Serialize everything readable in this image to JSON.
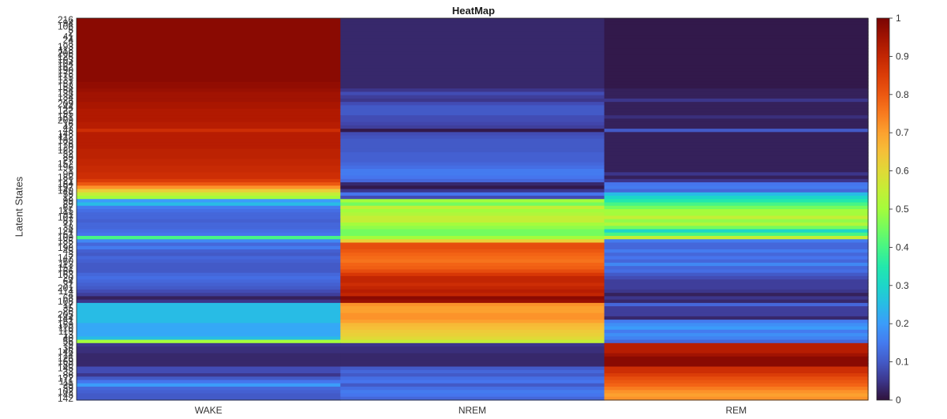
{
  "chart_data": {
    "type": "heatmap",
    "title": "HeatMap",
    "xlabel": "",
    "ylabel": "Latent States",
    "categories": [
      "WAKE",
      "NREM",
      "REM"
    ],
    "colormap": "turbo",
    "colorbar": {
      "range": [
        0,
        1
      ],
      "ticks": [
        "0",
        "0.1",
        "0.2",
        "0.3",
        "0.4",
        "0.5",
        "0.6",
        "0.7",
        "0.8",
        "0.9",
        "1"
      ]
    },
    "rows": [
      {
        "y": "216",
        "values": [
          0.98,
          0.03,
          0.01
        ]
      },
      {
        "y": "94",
        "values": [
          0.98,
          0.03,
          0.01
        ]
      },
      {
        "y": "106",
        "values": [
          0.98,
          0.03,
          0.01
        ]
      },
      {
        "y": "5",
        "values": [
          0.98,
          0.03,
          0.01
        ]
      },
      {
        "y": "2",
        "values": [
          0.98,
          0.03,
          0.01
        ]
      },
      {
        "y": "41",
        "values": [
          0.98,
          0.03,
          0.01
        ]
      },
      {
        "y": "24",
        "values": [
          0.98,
          0.03,
          0.01
        ]
      },
      {
        "y": "8",
        "values": [
          0.98,
          0.03,
          0.01
        ]
      },
      {
        "y": "193",
        "values": [
          0.98,
          0.03,
          0.01
        ]
      },
      {
        "y": "118",
        "values": [
          0.98,
          0.03,
          0.01
        ]
      },
      {
        "y": "206",
        "values": [
          0.98,
          0.03,
          0.01
        ]
      },
      {
        "y": "125",
        "values": [
          0.98,
          0.03,
          0.01
        ]
      },
      {
        "y": "103",
        "values": [
          0.98,
          0.03,
          0.01
        ]
      },
      {
        "y": "104",
        "values": [
          0.98,
          0.03,
          0.01
        ]
      },
      {
        "y": "162",
        "values": [
          0.98,
          0.03,
          0.01
        ]
      },
      {
        "y": "190",
        "values": [
          0.98,
          0.03,
          0.01
        ]
      },
      {
        "y": "178",
        "values": [
          0.98,
          0.03,
          0.01
        ]
      },
      {
        "y": "175",
        "values": [
          0.98,
          0.03,
          0.01
        ]
      },
      {
        "y": "131",
        "values": [
          0.98,
          0.03,
          0.01
        ]
      },
      {
        "y": "57",
        "values": [
          0.97,
          0.03,
          0.01
        ]
      },
      {
        "y": "158",
        "values": [
          0.97,
          0.03,
          0.01
        ]
      },
      {
        "y": "54",
        "values": [
          0.96,
          0.05,
          0.02
        ]
      },
      {
        "y": "138",
        "values": [
          0.95,
          0.08,
          0.02
        ]
      },
      {
        "y": "134",
        "values": [
          0.95,
          0.06,
          0.02
        ]
      },
      {
        "y": "28",
        "values": [
          0.95,
          0.05,
          0.05
        ]
      },
      {
        "y": "209",
        "values": [
          0.94,
          0.08,
          0.02
        ]
      },
      {
        "y": "44",
        "values": [
          0.94,
          0.1,
          0.02
        ]
      },
      {
        "y": "122",
        "values": [
          0.93,
          0.1,
          0.02
        ]
      },
      {
        "y": "95",
        "values": [
          0.93,
          0.1,
          0.02
        ]
      },
      {
        "y": "161",
        "values": [
          0.93,
          0.08,
          0.04
        ]
      },
      {
        "y": "209",
        "values": [
          0.93,
          0.08,
          0.02
        ]
      },
      {
        "y": "16",
        "values": [
          0.92,
          0.07,
          0.02
        ]
      },
      {
        "y": "47",
        "values": [
          0.92,
          0.06,
          0.02
        ]
      },
      {
        "y": "48",
        "values": [
          0.88,
          0.01,
          0.1
        ]
      },
      {
        "y": "148",
        "values": [
          0.92,
          0.08,
          0.02
        ]
      },
      {
        "y": "112",
        "values": [
          0.92,
          0.09,
          0.02
        ]
      },
      {
        "y": "183",
        "values": [
          0.92,
          0.1,
          0.02
        ]
      },
      {
        "y": "76",
        "values": [
          0.92,
          0.1,
          0.02
        ]
      },
      {
        "y": "120",
        "values": [
          0.92,
          0.1,
          0.02
        ]
      },
      {
        "y": "128",
        "values": [
          0.91,
          0.1,
          0.02
        ]
      },
      {
        "y": "32",
        "values": [
          0.91,
          0.11,
          0.02
        ]
      },
      {
        "y": "83",
        "values": [
          0.91,
          0.11,
          0.02
        ]
      },
      {
        "y": "27",
        "values": [
          0.9,
          0.11,
          0.02
        ]
      },
      {
        "y": "152",
        "values": [
          0.9,
          0.12,
          0.02
        ]
      },
      {
        "y": "196",
        "values": [
          0.89,
          0.13,
          0.02
        ]
      },
      {
        "y": "1",
        "values": [
          0.89,
          0.15,
          0.02
        ]
      },
      {
        "y": "90",
        "values": [
          0.88,
          0.15,
          0.05
        ]
      },
      {
        "y": "188",
        "values": [
          0.88,
          0.14,
          0.02
        ]
      },
      {
        "y": "21",
        "values": [
          0.85,
          0.12,
          0.05
        ]
      },
      {
        "y": "184",
        "values": [
          0.8,
          0.03,
          0.14
        ]
      },
      {
        "y": "197",
        "values": [
          0.72,
          0.01,
          0.15
        ]
      },
      {
        "y": "149",
        "values": [
          0.62,
          0.05,
          0.12
        ]
      },
      {
        "y": "59",
        "values": [
          0.55,
          0.14,
          0.25
        ]
      },
      {
        "y": "12",
        "values": [
          0.5,
          0.08,
          0.3
        ]
      },
      {
        "y": "99",
        "values": [
          0.2,
          0.5,
          0.35
        ]
      },
      {
        "y": "89",
        "values": [
          0.25,
          0.45,
          0.4
        ]
      },
      {
        "y": "67",
        "values": [
          0.15,
          0.55,
          0.45
        ]
      },
      {
        "y": "115",
        "values": [
          0.13,
          0.5,
          0.5
        ]
      },
      {
        "y": "91",
        "values": [
          0.12,
          0.52,
          0.5
        ]
      },
      {
        "y": "107",
        "values": [
          0.12,
          0.55,
          0.55
        ]
      },
      {
        "y": "87",
        "values": [
          0.11,
          0.55,
          0.48
        ]
      },
      {
        "y": "77",
        "values": [
          0.12,
          0.5,
          0.52
        ]
      },
      {
        "y": "38",
        "values": [
          0.12,
          0.48,
          0.45
        ]
      },
      {
        "y": "124",
        "values": [
          0.13,
          0.45,
          0.3
        ]
      },
      {
        "y": "61",
        "values": [
          0.14,
          0.45,
          0.4
        ]
      },
      {
        "y": "109",
        "values": [
          0.4,
          0.5,
          0.55
        ]
      },
      {
        "y": "185",
        "values": [
          0.17,
          0.62,
          0.15
        ]
      },
      {
        "y": "22",
        "values": [
          0.12,
          0.82,
          0.12
        ]
      },
      {
        "y": "198",
        "values": [
          0.15,
          0.82,
          0.12
        ]
      },
      {
        "y": "45",
        "values": [
          0.11,
          0.8,
          0.15
        ]
      },
      {
        "y": "3",
        "values": [
          0.1,
          0.78,
          0.12
        ]
      },
      {
        "y": "147",
        "values": [
          0.12,
          0.77,
          0.14
        ]
      },
      {
        "y": "60",
        "values": [
          0.11,
          0.76,
          0.12
        ]
      },
      {
        "y": "113",
        "values": [
          0.1,
          0.78,
          0.17
        ]
      },
      {
        "y": "151",
        "values": [
          0.1,
          0.79,
          0.12
        ]
      },
      {
        "y": "66",
        "values": [
          0.1,
          0.82,
          0.13
        ]
      },
      {
        "y": "163",
        "values": [
          0.12,
          0.86,
          0.1
        ]
      },
      {
        "y": "20",
        "values": [
          0.13,
          0.9,
          0.08
        ]
      },
      {
        "y": "64",
        "values": [
          0.12,
          0.9,
          0.06
        ]
      },
      {
        "y": "31",
        "values": [
          0.11,
          0.88,
          0.06
        ]
      },
      {
        "y": "201",
        "values": [
          0.1,
          0.9,
          0.06
        ]
      },
      {
        "y": "114",
        "values": [
          0.08,
          0.92,
          0.05
        ]
      },
      {
        "y": "4",
        "values": [
          0.06,
          0.9,
          0.02
        ]
      },
      {
        "y": "68",
        "values": [
          0.02,
          0.98,
          0.05
        ]
      },
      {
        "y": "108",
        "values": [
          0.05,
          0.96,
          0.03
        ]
      },
      {
        "y": "17",
        "values": [
          0.25,
          0.72,
          0.12
        ]
      },
      {
        "y": "35",
        "values": [
          0.25,
          0.7,
          0.06
        ]
      },
      {
        "y": "26",
        "values": [
          0.25,
          0.7,
          0.06
        ]
      },
      {
        "y": "205",
        "values": [
          0.25,
          0.72,
          0.06
        ]
      },
      {
        "y": "144",
        "values": [
          0.25,
          0.72,
          0.03
        ]
      },
      {
        "y": "51",
        "values": [
          0.25,
          0.7,
          0.15
        ]
      },
      {
        "y": "159",
        "values": [
          0.22,
          0.66,
          0.18
        ]
      },
      {
        "y": "110",
        "values": [
          0.22,
          0.65,
          0.2
        ]
      },
      {
        "y": "119",
        "values": [
          0.22,
          0.63,
          0.15
        ]
      },
      {
        "y": "13",
        "values": [
          0.22,
          0.62,
          0.18
        ]
      },
      {
        "y": "40",
        "values": [
          0.25,
          0.6,
          0.16
        ]
      },
      {
        "y": "56",
        "values": [
          0.5,
          0.55,
          0.12
        ]
      },
      {
        "y": "79",
        "values": [
          0.05,
          0.05,
          0.92
        ]
      },
      {
        "y": "36",
        "values": [
          0.04,
          0.04,
          0.92
        ]
      },
      {
        "y": "146",
        "values": [
          0.04,
          0.04,
          0.92
        ]
      },
      {
        "y": "14",
        "values": [
          0.03,
          0.03,
          0.95
        ]
      },
      {
        "y": "126",
        "values": [
          0.03,
          0.03,
          0.98
        ]
      },
      {
        "y": "169",
        "values": [
          0.03,
          0.03,
          0.98
        ]
      },
      {
        "y": "80",
        "values": [
          0.03,
          0.03,
          0.98
        ]
      },
      {
        "y": "145",
        "values": [
          0.08,
          0.1,
          0.88
        ]
      },
      {
        "y": "33",
        "values": [
          0.08,
          0.12,
          0.88
        ]
      },
      {
        "y": "86",
        "values": [
          0.05,
          0.1,
          0.85
        ]
      },
      {
        "y": "172",
        "values": [
          0.1,
          0.13,
          0.82
        ]
      },
      {
        "y": "111",
        "values": [
          0.14,
          0.14,
          0.8
        ]
      },
      {
        "y": "29",
        "values": [
          0.2,
          0.1,
          0.78
        ]
      },
      {
        "y": "39",
        "values": [
          0.12,
          0.13,
          0.75
        ]
      },
      {
        "y": "102",
        "values": [
          0.11,
          0.15,
          0.72
        ]
      },
      {
        "y": "43",
        "values": [
          0.1,
          0.14,
          0.7
        ]
      },
      {
        "y": "142",
        "values": [
          0.1,
          0.12,
          0.72
        ]
      }
    ]
  }
}
